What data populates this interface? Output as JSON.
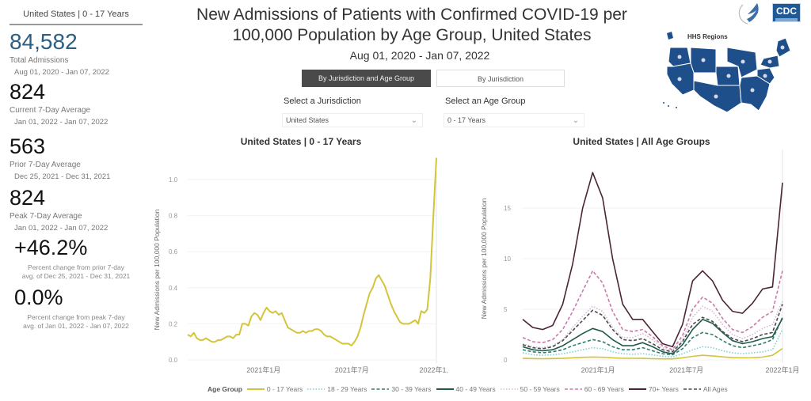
{
  "kpi": {
    "header": "United States | 0 - 17 Years",
    "total": {
      "value": "84,582",
      "label": "Total Admissions",
      "date": "Aug 01, 2020 - Jan 07, 2022"
    },
    "current": {
      "value": "824",
      "label": "Current 7-Day Average",
      "date": "Jan 01, 2022 - Jan 07, 2022"
    },
    "prior": {
      "value": "563",
      "label": "Prior 7-Day Average",
      "date": "Dec 25, 2021 - Dec 31, 2021"
    },
    "peak": {
      "value": "824",
      "label": "Peak 7-Day Average",
      "date": "Jan 01, 2022 - Jan 07, 2022"
    },
    "pct_prior": {
      "value": "+46.2%",
      "note_line1": "Percent change from prior 7-day",
      "note_line2": "avg. of Dec 25, 2021 - Dec 31, 2021"
    },
    "pct_peak": {
      "value": "0.0%",
      "note_line1": "Percent change from peak 7-day",
      "note_line2": "avg. of Jan 01, 2022 - Jan 07, 2022"
    }
  },
  "header": {
    "title_line1": "New Admissions of Patients with Confirmed COVID-19 per",
    "title_line2": "100,000 Population by Age Group, United States",
    "subtitle": "Aug 01, 2020 - Jan 07, 2022",
    "cdc_logo_text": "CDC",
    "map_title": "HHS Regions"
  },
  "controls": {
    "toggle_active": "By Jurisdiction and Age Group",
    "toggle_inactive": "By Jurisdiction",
    "jurisdiction_label": "Select a Jurisdiction",
    "jurisdiction_value": "United States",
    "age_label": "Select an Age Group",
    "age_value": "0 - 17 Years"
  },
  "legend": {
    "title": "Age Group",
    "items": [
      {
        "label": "0 - 17 Years",
        "color": "#d4c43a",
        "dash": "solid"
      },
      {
        "label": "18 - 29 Years",
        "color": "#7fd0d0",
        "dash": "dot"
      },
      {
        "label": "30 - 39 Years",
        "color": "#2e7d6e",
        "dash": "dash"
      },
      {
        "label": "40 - 49 Years",
        "color": "#1f5a4a",
        "dash": "solid"
      },
      {
        "label": "50 - 59 Years",
        "color": "#d8b8d8",
        "dash": "dot"
      },
      {
        "label": "60 - 69 Years",
        "color": "#c87aa8",
        "dash": "dash"
      },
      {
        "label": "70+ Years",
        "color": "#4a2438",
        "dash": "solid"
      },
      {
        "label": "All Ages",
        "color": "#4a4a4a",
        "dash": "dash"
      }
    ]
  },
  "chart_data": [
    {
      "type": "line",
      "title": "United States | 0 - 17 Years",
      "xlabel": "",
      "ylabel": "New Admissions per 100,000 Population",
      "ylim": [
        0,
        1.0
      ],
      "yticks": [
        "0.0",
        "0.2",
        "0.4",
        "0.6",
        "0.8",
        "1.0"
      ],
      "xticks": [
        {
          "label": "2021年1月",
          "t": 0.305
        },
        {
          "label": "2021年7月",
          "t": 0.66
        },
        {
          "label": "2022年1月",
          "t": 1.0
        }
      ],
      "series": [
        {
          "name": "0 - 17 Years",
          "color": "#d4c43a",
          "values": [
            0.14,
            0.13,
            0.15,
            0.12,
            0.11,
            0.11,
            0.12,
            0.11,
            0.1,
            0.1,
            0.11,
            0.11,
            0.12,
            0.13,
            0.13,
            0.12,
            0.14,
            0.14,
            0.2,
            0.2,
            0.19,
            0.24,
            0.26,
            0.25,
            0.22,
            0.26,
            0.29,
            0.27,
            0.26,
            0.27,
            0.25,
            0.26,
            0.22,
            0.18,
            0.17,
            0.16,
            0.15,
            0.15,
            0.16,
            0.15,
            0.16,
            0.16,
            0.17,
            0.17,
            0.16,
            0.14,
            0.13,
            0.13,
            0.12,
            0.11,
            0.1,
            0.09,
            0.09,
            0.09,
            0.08,
            0.1,
            0.13,
            0.18,
            0.25,
            0.31,
            0.37,
            0.4,
            0.45,
            0.47,
            0.44,
            0.41,
            0.36,
            0.31,
            0.27,
            0.24,
            0.21,
            0.2,
            0.2,
            0.2,
            0.21,
            0.22,
            0.2,
            0.27,
            0.26,
            0.28,
            0.45,
            0.8,
            1.12
          ]
        }
      ]
    },
    {
      "type": "line",
      "title": "United States | All Age Groups",
      "xlabel": "",
      "ylabel": "New Admissions per 100,000 Population",
      "ylim": [
        0,
        20
      ],
      "yticks": [
        "0",
        "5",
        "10",
        "15"
      ],
      "xticks": [
        {
          "label": "2021年1月",
          "t": 0.29
        },
        {
          "label": "2021年7月",
          "t": 0.63
        },
        {
          "label": "2022年1月",
          "t": 1.0
        }
      ],
      "series": [
        {
          "name": "0 - 17 Years",
          "color": "#d4c43a",
          "dash": "solid",
          "values": [
            0.15,
            0.13,
            0.12,
            0.13,
            0.15,
            0.2,
            0.25,
            0.28,
            0.26,
            0.2,
            0.16,
            0.16,
            0.15,
            0.12,
            0.1,
            0.1,
            0.2,
            0.35,
            0.45,
            0.4,
            0.3,
            0.22,
            0.2,
            0.21,
            0.27,
            0.45,
            1.12
          ]
        },
        {
          "name": "18 - 29 Years",
          "color": "#7fd0d0",
          "dash": "dot",
          "values": [
            0.7,
            0.5,
            0.45,
            0.5,
            0.6,
            0.8,
            1.0,
            1.2,
            1.1,
            0.8,
            0.6,
            0.55,
            0.6,
            0.5,
            0.35,
            0.3,
            0.6,
            1.0,
            1.3,
            1.2,
            0.9,
            0.7,
            0.6,
            0.7,
            0.8,
            1.0,
            3.0
          ]
        },
        {
          "name": "30 - 39 Years",
          "color": "#2e7d6e",
          "dash": "dash",
          "values": [
            1.0,
            0.8,
            0.7,
            0.8,
            1.0,
            1.4,
            1.7,
            2.0,
            1.8,
            1.3,
            1.0,
            1.0,
            1.2,
            0.9,
            0.6,
            0.5,
            1.1,
            2.2,
            2.7,
            2.5,
            1.9,
            1.4,
            1.2,
            1.4,
            1.6,
            2.0,
            4.2
          ]
        },
        {
          "name": "40 - 49 Years",
          "color": "#1f5a4a",
          "dash": "solid",
          "values": [
            1.3,
            1.0,
            0.9,
            1.0,
            1.4,
            2.0,
            2.6,
            3.1,
            2.8,
            2.0,
            1.4,
            1.4,
            1.7,
            1.3,
            0.8,
            0.6,
            1.5,
            3.0,
            4.0,
            3.6,
            2.7,
            1.9,
            1.6,
            1.8,
            2.1,
            2.3,
            4.1
          ]
        },
        {
          "name": "50 - 59 Years",
          "color": "#d8b8d8",
          "dash": "dot",
          "values": [
            1.6,
            1.3,
            1.2,
            1.4,
            2.0,
            3.2,
            4.3,
            5.3,
            4.8,
            3.2,
            2.2,
            2.2,
            2.6,
            2.0,
            1.2,
            0.9,
            2.0,
            4.2,
            5.3,
            4.8,
            3.5,
            2.5,
            2.1,
            2.5,
            3.1,
            3.5,
            5.8
          ]
        },
        {
          "name": "60 - 69 Years",
          "color": "#c87aa8",
          "dash": "dash",
          "values": [
            2.2,
            1.8,
            1.7,
            2.0,
            3.0,
            4.8,
            6.8,
            8.8,
            7.6,
            4.8,
            3.0,
            2.8,
            3.0,
            2.3,
            1.4,
            1.0,
            2.4,
            5.0,
            6.2,
            5.6,
            4.1,
            3.0,
            2.7,
            3.3,
            4.2,
            4.8,
            8.8
          ]
        },
        {
          "name": "70+ Years",
          "color": "#4a2438",
          "dash": "solid",
          "values": [
            4.0,
            3.2,
            3.0,
            3.4,
            5.5,
            9.5,
            15.0,
            18.5,
            16.0,
            10.0,
            5.5,
            4.0,
            4.0,
            2.8,
            1.6,
            1.3,
            3.5,
            7.8,
            8.8,
            7.8,
            5.9,
            4.8,
            4.6,
            5.6,
            7.0,
            7.2,
            17.5
          ]
        },
        {
          "name": "All Ages",
          "color": "#4a4a4a",
          "dash": "dash",
          "values": [
            1.5,
            1.2,
            1.1,
            1.3,
            1.9,
            2.9,
            3.9,
            4.9,
            4.4,
            3.0,
            2.0,
            1.9,
            2.1,
            1.6,
            1.0,
            0.8,
            1.8,
            3.5,
            4.2,
            3.8,
            2.8,
            2.1,
            1.8,
            2.1,
            2.5,
            2.7,
            5.5
          ]
        }
      ]
    }
  ]
}
